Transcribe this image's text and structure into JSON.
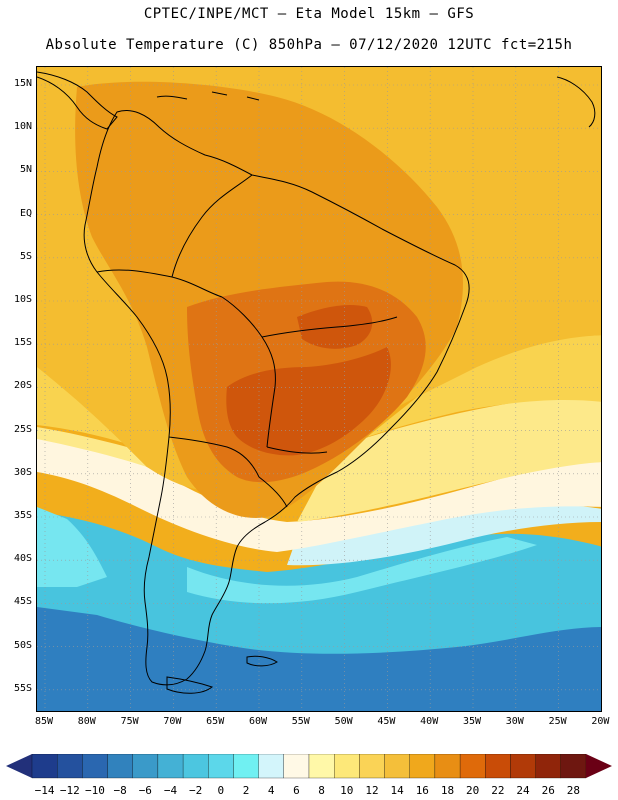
{
  "header": {
    "line1": "CPTEC/INPE/MCT –  Eta Model 15km – GFS",
    "line2": "Absolute Temperature (C) 850hPa – 07/12/2020 12UTC fct=215h"
  },
  "lat_labels": [
    "15N",
    "10N",
    "5N",
    "EQ",
    "5S",
    "10S",
    "15S",
    "20S",
    "25S",
    "30S",
    "35S",
    "40S",
    "45S",
    "50S",
    "55S"
  ],
  "lon_labels": [
    "85W",
    "80W",
    "75W",
    "70W",
    "65W",
    "60W",
    "55W",
    "50W",
    "45W",
    "40W",
    "35W",
    "30W",
    "25W",
    "20W"
  ],
  "colorbar": {
    "labels": [
      "-14",
      "-12",
      "-10",
      "-8",
      "-6",
      "-4",
      "-2",
      "0",
      "2",
      "4",
      "6",
      "8",
      "10",
      "12",
      "14",
      "16",
      "18",
      "20",
      "22",
      "24",
      "26",
      "28"
    ],
    "colors": [
      "#1e3c8c",
      "#24519e",
      "#2a67b0",
      "#3182bd",
      "#3a9ac9",
      "#44b1d5",
      "#4cc6e0",
      "#5cd7ea",
      "#70f0f2",
      "#d3f5fb",
      "#fff9e6",
      "#fff8a8",
      "#fde879",
      "#fad356",
      "#f4bf3a",
      "#f0a81c",
      "#e88e14",
      "#df6a0a",
      "#c94c07",
      "#b13a08",
      "#90250a",
      "#6e1710"
    ],
    "left_arrow_color": "#22307a",
    "right_arrow_color": "#6a0015"
  },
  "map": {
    "background": "#f2ae1c",
    "coast_color": "#000000",
    "grid_color": "#9a9a9a",
    "field_layers": [
      {
        "name": "deep-blue-south",
        "color": "#2f7fc0"
      },
      {
        "name": "cyan-south",
        "color": "#48c4de"
      },
      {
        "name": "light-cyan",
        "color": "#76e6f0"
      },
      {
        "name": "pale-cyan",
        "color": "#d0f3f8"
      },
      {
        "name": "cream",
        "color": "#fff6df"
      },
      {
        "name": "light-yellow",
        "color": "#fde98a"
      },
      {
        "name": "yellow",
        "color": "#f9d34f"
      },
      {
        "name": "gold-ocean",
        "color": "#f4bd30"
      },
      {
        "name": "orange-continent",
        "color": "#eb9b1a"
      },
      {
        "name": "dark-orange",
        "color": "#df7414"
      },
      {
        "name": "red-orange-core",
        "color": "#cf560c"
      }
    ]
  }
}
